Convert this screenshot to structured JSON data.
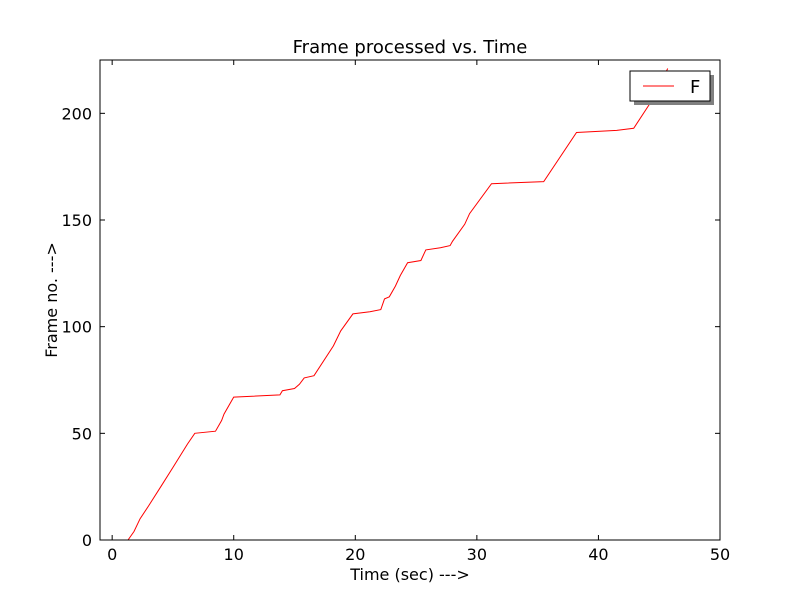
{
  "chart_data": {
    "type": "line",
    "title": "Frame processed vs. Time",
    "xlabel": "Time (sec) --->",
    "ylabel": "Frame no. --->",
    "xlim": [
      -1,
      50
    ],
    "ylim": [
      0,
      225
    ],
    "xticks": [
      0,
      10,
      20,
      30,
      40,
      50
    ],
    "yticks": [
      0,
      50,
      100,
      150,
      200
    ],
    "grid": false,
    "legend": {
      "position": "top-right",
      "shadow": true
    },
    "series": [
      {
        "name": "F",
        "color": "#ff0000",
        "points": [
          [
            1.3,
            0
          ],
          [
            1.8,
            4
          ],
          [
            2.3,
            10
          ],
          [
            3.0,
            16
          ],
          [
            4.0,
            25
          ],
          [
            5.0,
            34
          ],
          [
            6.2,
            45
          ],
          [
            6.8,
            50
          ],
          [
            8.5,
            51
          ],
          [
            9.0,
            56
          ],
          [
            9.2,
            59
          ],
          [
            10.0,
            67
          ],
          [
            13.8,
            68
          ],
          [
            14.0,
            70
          ],
          [
            15.0,
            71
          ],
          [
            15.4,
            73
          ],
          [
            15.8,
            76
          ],
          [
            16.6,
            77
          ],
          [
            18.2,
            91
          ],
          [
            18.8,
            98
          ],
          [
            19.8,
            106
          ],
          [
            21.2,
            107
          ],
          [
            22.1,
            108
          ],
          [
            22.4,
            113
          ],
          [
            22.8,
            114
          ],
          [
            23.3,
            119
          ],
          [
            23.7,
            124
          ],
          [
            24.3,
            130
          ],
          [
            25.4,
            131
          ],
          [
            25.8,
            136
          ],
          [
            27.0,
            137
          ],
          [
            27.8,
            138
          ],
          [
            28.0,
            140
          ],
          [
            29.0,
            148
          ],
          [
            29.4,
            153
          ],
          [
            31.2,
            167
          ],
          [
            35.5,
            168
          ],
          [
            38.2,
            191
          ],
          [
            41.5,
            192
          ],
          [
            42.9,
            193
          ],
          [
            44.4,
            206
          ],
          [
            44.8,
            209
          ],
          [
            45.2,
            215
          ],
          [
            45.7,
            221
          ]
        ]
      }
    ]
  }
}
